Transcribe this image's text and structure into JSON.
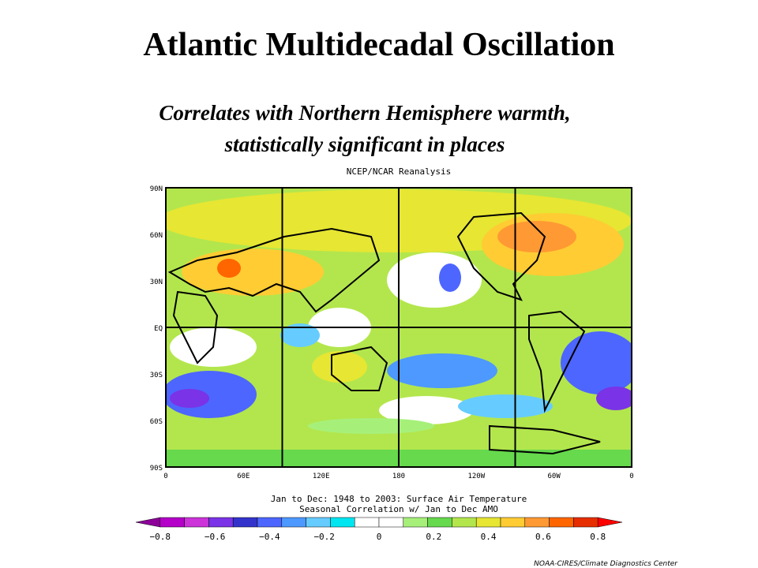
{
  "slide": {
    "title": "Atlantic Multidecadal Oscillation",
    "subtitle_lines": [
      "Correlates with Northern Hemisphere warmth,",
      "statistically significant in places"
    ],
    "map": {
      "title": "NCEP/NCAR Reanalysis",
      "lat_labels": [
        "90N",
        "60N",
        "30N",
        "EQ",
        "30S",
        "60S",
        "90S"
      ],
      "lon_labels": [
        "0",
        "60E",
        "120E",
        "180",
        "120W",
        "60W",
        "0"
      ],
      "caption_lines": [
        "Jan to Dec: 1948 to 2003: Surface Air Temperature",
        "Seasonal Correlation w/ Jan to Dec AMO"
      ]
    },
    "colorbar": {
      "labels": [
        "−0.8",
        "−0.6",
        "−0.4",
        "−0.2",
        "0",
        "0.2",
        "0.4",
        "0.6",
        "0.8"
      ],
      "colors": [
        "#8c0099",
        "#b400c8",
        "#cc33d9",
        "#7a33e6",
        "#3333cc",
        "#4d66ff",
        "#4d99ff",
        "#66ccff",
        "#00e6f0",
        "#ffffff",
        "#ffffff",
        "#a6f07a",
        "#66d94d",
        "#b3e64d",
        "#e6e633",
        "#ffcc33",
        "#ff9933",
        "#ff6600",
        "#e62e00",
        "#ff0000"
      ]
    },
    "credit": "NOAA-CIRES/Climate Diagnostics Center"
  }
}
